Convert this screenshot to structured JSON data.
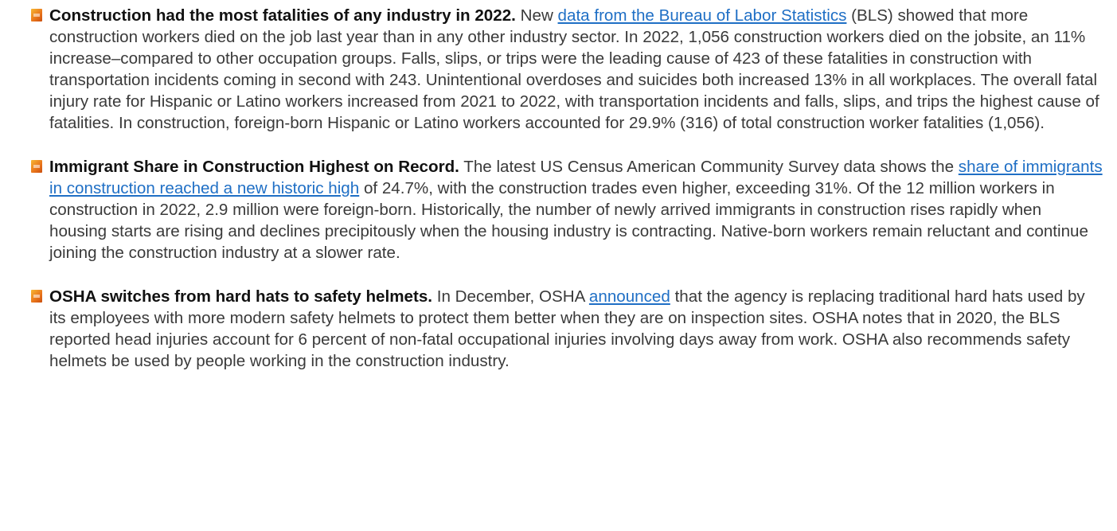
{
  "items": [
    {
      "parts": [
        {
          "kind": "heading",
          "text": "Construction had the most fatalities of any industry in 2022."
        },
        {
          "kind": "text",
          "text": " New "
        },
        {
          "kind": "link",
          "text": "data from the Bureau of Labor Statistics"
        },
        {
          "kind": "text",
          "text": " (BLS) showed that more construction workers died on the job last year than in any other industry sector. In 2022, 1,056 construction workers died on the jobsite, an 11% increase–compared to other occupation groups. Falls, slips, or trips were the leading cause of 423 of these fatalities in construction with transportation incidents coming in second with 243. Unintentional overdoses and suicides both increased 13% in all workplaces. The overall fatal injury rate for Hispanic or Latino workers increased from 2021 to 2022, with transportation incidents and falls, slips, and trips the highest cause of fatalities. In construction, foreign-born Hispanic or Latino workers accounted for 29.9% (316) of total construction worker fatalities (1,056)."
        }
      ]
    },
    {
      "parts": [
        {
          "kind": "heading",
          "text": "Immigrant Share in Construction Highest on Record."
        },
        {
          "kind": "text",
          "text": " The latest US Census American Community Survey data shows the "
        },
        {
          "kind": "link",
          "text": "share of immigrants in construction reached a new historic high"
        },
        {
          "kind": "text",
          "text": " of 24.7%, with the construction trades even higher, exceeding 31%. Of the 12 million workers in construction in 2022, 2.9 million were foreign-born. Historically, the number of newly arrived immigrants in construction rises rapidly when housing starts are rising and declines precipitously when the housing industry is contracting. Native-born workers remain reluctant and continue joining the construction industry at a slower rate."
        }
      ]
    },
    {
      "parts": [
        {
          "kind": "heading",
          "text": "OSHA switches from hard hats to safety helmets."
        },
        {
          "kind": "text",
          "text": " In December, OSHA "
        },
        {
          "kind": "link",
          "text": "announced"
        },
        {
          "kind": "text",
          "text": " that the agency is replacing traditional hard hats used by its employees with more modern safety helmets to protect them better when they are on inspection sites. OSHA notes that in 2020, the BLS reported head injuries account for 6 percent of non-fatal occupational injuries involving days away from work. OSHA also recommends safety helmets be used by people working in the construction industry."
        }
      ]
    }
  ]
}
